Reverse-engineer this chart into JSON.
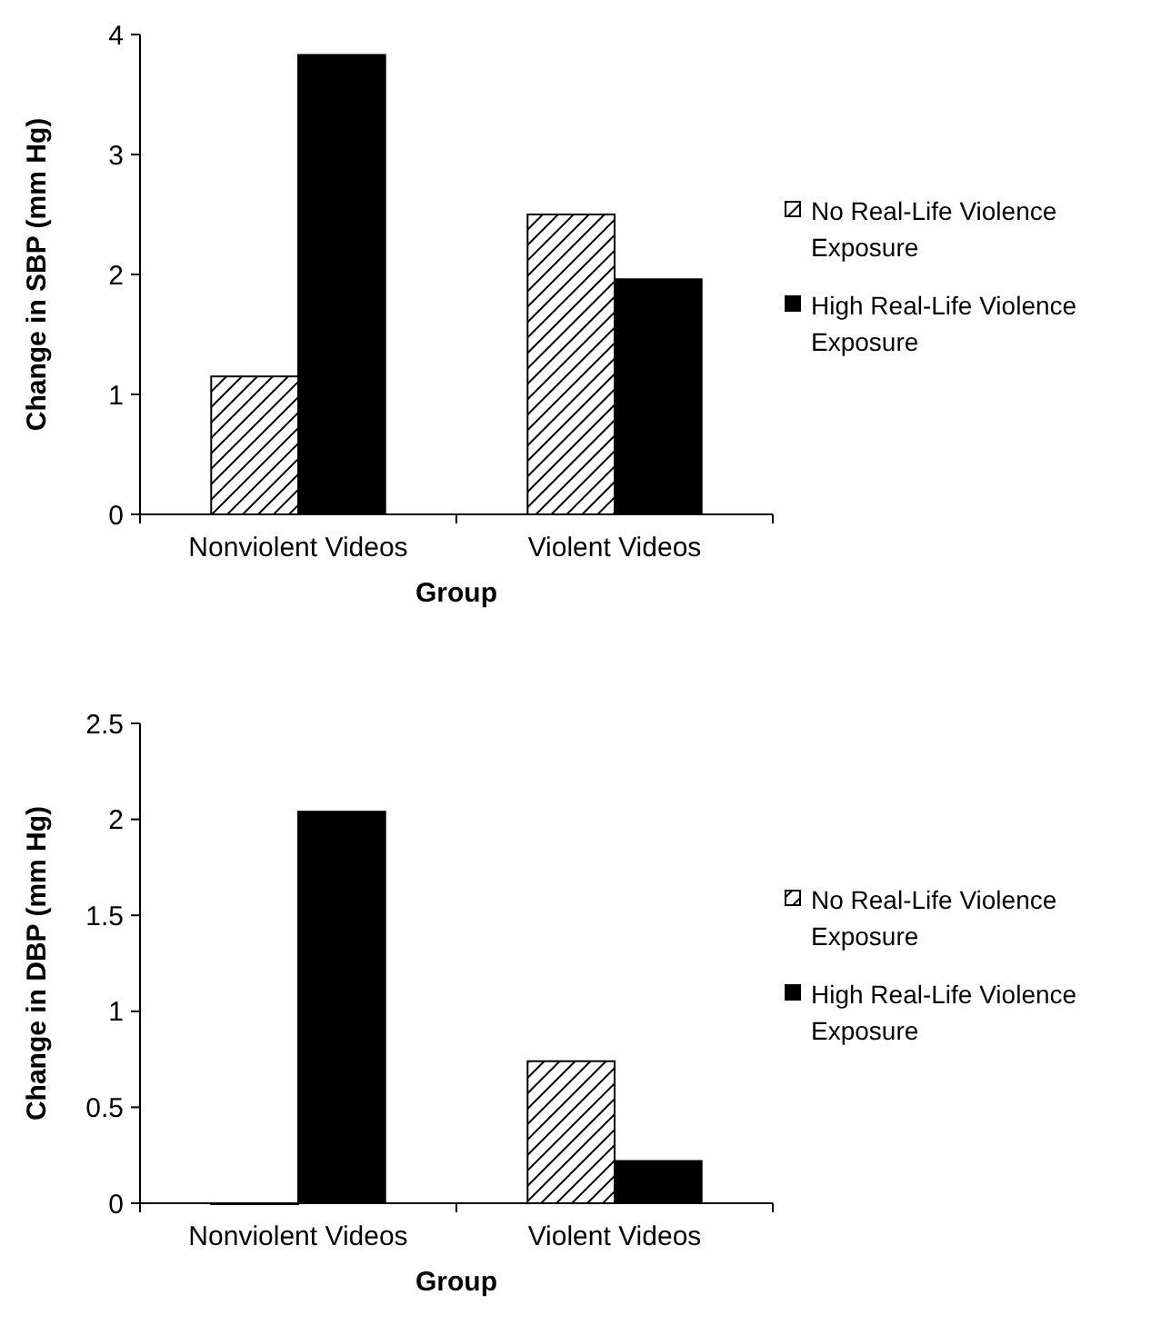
{
  "chart_data": [
    {
      "type": "bar",
      "xlabel": "Group",
      "ylabel": "Change in SBP (mm Hg)",
      "categories": [
        "Nonviolent Videos",
        "Violent Videos"
      ],
      "ylim": [
        0,
        4
      ],
      "yticks": [
        0,
        1,
        2,
        3,
        4
      ],
      "legend": "right",
      "grid": false,
      "series": [
        {
          "name": "No Real-Life Violence Exposure",
          "color": "#000000",
          "values": [
            1.15,
            2.5
          ]
        },
        {
          "name": "High Real-Life Violence Exposure",
          "color": "#000000",
          "values": [
            3.83,
            1.96
          ]
        }
      ]
    },
    {
      "type": "bar",
      "xlabel": "Group",
      "ylabel": "Change in DBP (mm Hg)",
      "categories": [
        "Nonviolent Videos",
        "Violent Videos"
      ],
      "ylim": [
        0,
        2.5
      ],
      "yticks": [
        0,
        0.5,
        1,
        1.5,
        2,
        2.5
      ],
      "legend": "right",
      "grid": false,
      "series": [
        {
          "name": "No Real-Life Violence Exposure",
          "color": "#000000",
          "values": [
            0,
            0.74
          ]
        },
        {
          "name": "High Real-Life Violence Exposure",
          "color": "#000000",
          "values": [
            2.04,
            0.22
          ]
        }
      ]
    }
  ]
}
